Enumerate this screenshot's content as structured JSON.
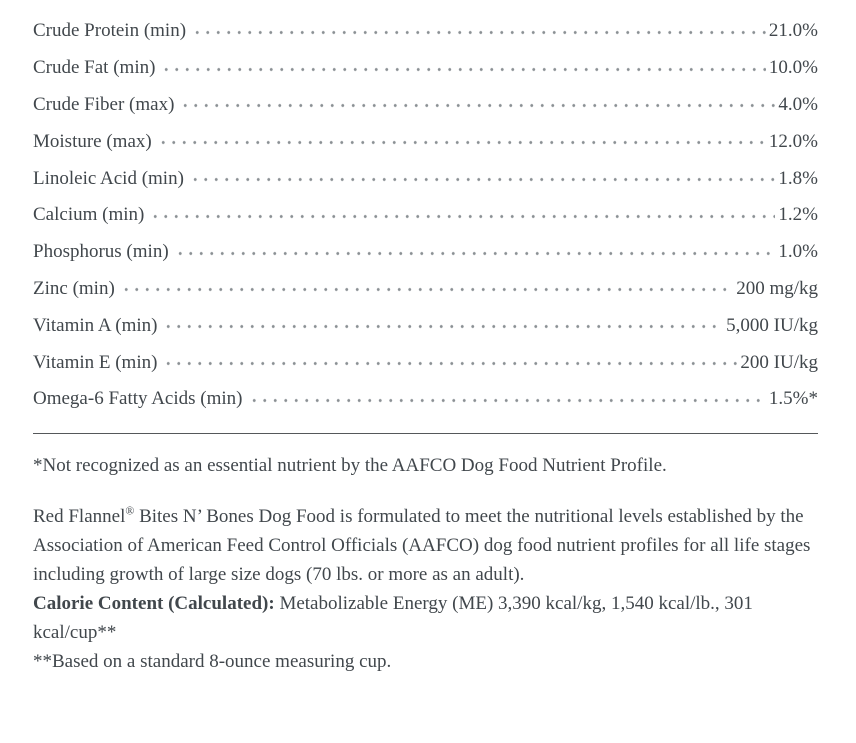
{
  "analysis": {
    "rows": [
      {
        "label": "Crude Protein (min)",
        "value": "21.0%"
      },
      {
        "label": "Crude Fat (min)",
        "value": "10.0%"
      },
      {
        "label": "Crude Fiber (max)",
        "value": "4.0%"
      },
      {
        "label": "Moisture (max)",
        "value": "12.0%"
      },
      {
        "label": "Linoleic Acid (min)",
        "value": "1.8%"
      },
      {
        "label": "Calcium (min)",
        "value": "1.2%"
      },
      {
        "label": "Phosphorus (min)",
        "value": "1.0%"
      },
      {
        "label": "Zinc (min)",
        "value": "200 mg/kg"
      },
      {
        "label": "Vitamin A (min)",
        "value": "5,000 IU/kg"
      },
      {
        "label": "Vitamin E (min)",
        "value": "200 IU/kg"
      },
      {
        "label": "Omega-6 Fatty Acids (min)",
        "value": "1.5%*"
      }
    ]
  },
  "notes": {
    "asterisk_note": "*Not recognized as an essential nutrient by the AAFCO Dog Food Nutrient Profile."
  },
  "statement": {
    "brand": "Red Flannel",
    "registered_mark": "®",
    "body": " Bites N’ Bones Dog Food is formulated to meet the nutritional levels established by the Association of American Feed Control Officials (AAFCO) dog food nutrient profiles for all life stages including growth of large size dogs (70 lbs. or more as an adult)."
  },
  "calorie": {
    "label": "Calorie Content (Calculated):",
    "value": " Metabolizable Energy (ME) 3,390 kcal/kg, 1,540 kcal/lb., 301 kcal/cup**"
  },
  "cup_note": "**Based on a standard 8-ounce measuring cup.",
  "colors": {
    "text": "#41474c",
    "leader_dots": "#8b9094",
    "divider": "#55585a",
    "background": "#ffffff"
  }
}
